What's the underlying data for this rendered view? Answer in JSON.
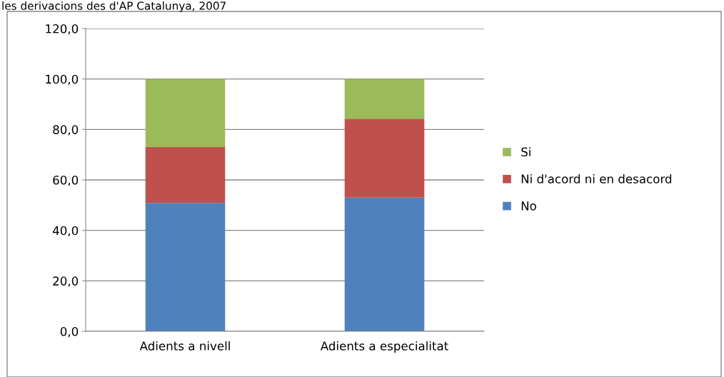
{
  "chart_data": {
    "type": "bar",
    "stacked": true,
    "title": "les derivacions des d'AP Catalunya, 2007",
    "categories": [
      "Adients a nivell",
      "Adients a especialitat"
    ],
    "series": [
      {
        "name": "No",
        "color": "#4f81bd",
        "values": [
          50.9,
          53.0
        ]
      },
      {
        "name": "Ni d'acord ni en desacord",
        "color": "#c0504d",
        "values": [
          22.1,
          31.3
        ]
      },
      {
        "name": "Si",
        "color": "#9bbb59",
        "values": [
          27.0,
          15.7
        ]
      }
    ],
    "ylim": [
      0,
      120
    ],
    "yticks": [
      {
        "value": 0,
        "label": "0,0"
      },
      {
        "value": 20,
        "label": "20,0"
      },
      {
        "value": 40,
        "label": "40,0"
      },
      {
        "value": 60,
        "label": "60,0"
      },
      {
        "value": 80,
        "label": "80,0"
      },
      {
        "value": 100,
        "label": "100,0"
      },
      {
        "value": 120,
        "label": "120,0"
      }
    ],
    "grid": "y",
    "legend": "right"
  }
}
